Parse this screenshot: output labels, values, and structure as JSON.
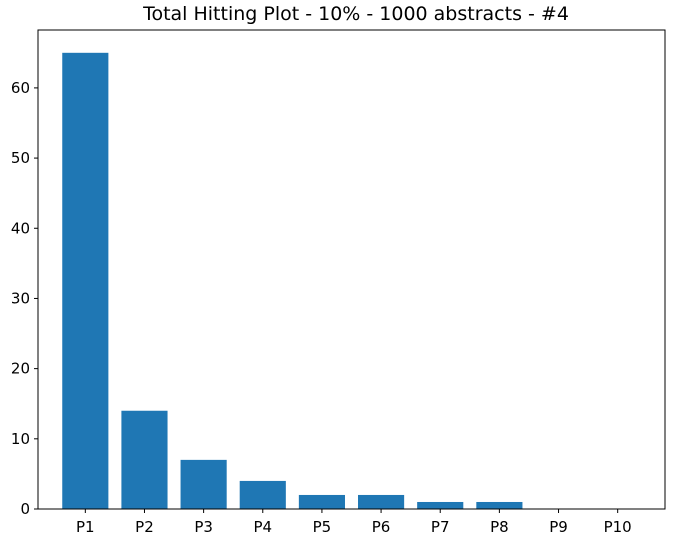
{
  "chart_data": {
    "type": "bar",
    "title": "Total Hitting Plot - 10% - 1000 abstracts - #4",
    "xlabel": "",
    "ylabel": "",
    "categories": [
      "P1",
      "P2",
      "P3",
      "P4",
      "P5",
      "P6",
      "P7",
      "P8",
      "P9",
      "P10"
    ],
    "values": [
      65,
      14,
      7,
      4,
      2,
      2,
      1,
      1,
      0,
      0
    ],
    "ylim": [
      0,
      68.25
    ],
    "yticks": [
      0,
      10,
      20,
      30,
      40,
      50,
      60
    ],
    "grid": false,
    "legend": "none",
    "bar_color": "#1f77b4"
  }
}
